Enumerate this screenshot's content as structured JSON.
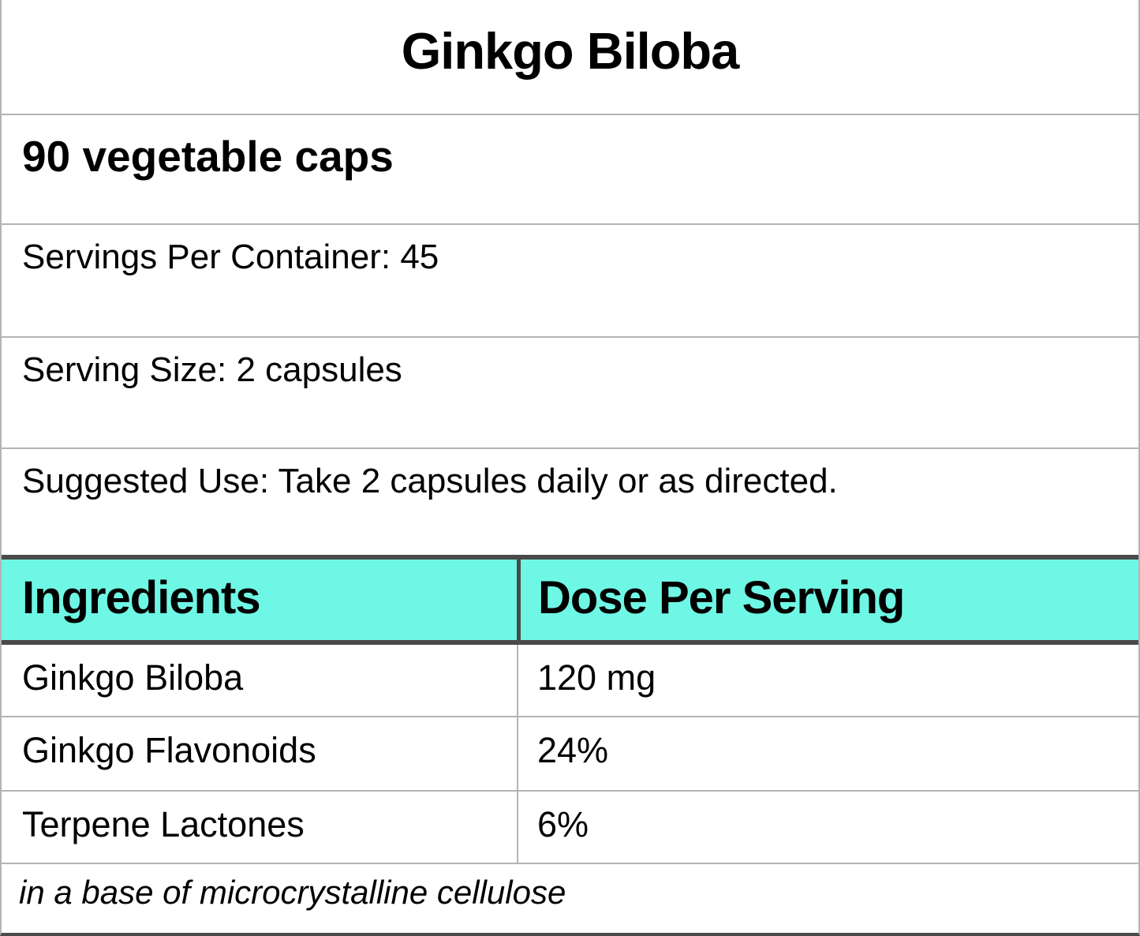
{
  "title": "Ginkgo Biloba",
  "package_quantity": "90 vegetable caps",
  "servings_per_container": "Servings Per Container: 45",
  "serving_size": "Serving Size: 2 capsules",
  "suggested_use": "Suggested Use: Take 2 capsules daily or as directed.",
  "ingredients_table": {
    "header": {
      "ingredients": "Ingredients",
      "dose": "Dose Per Serving"
    },
    "rows": [
      {
        "ingredient": "Ginkgo Biloba",
        "dose": "120 mg"
      },
      {
        "ingredient": "Ginkgo Flavonoids",
        "dose": "24%"
      },
      {
        "ingredient": "Terpene Lactones",
        "dose": "6%"
      }
    ],
    "base_note": "in a base of microcrystalline cellulose"
  },
  "colors": {
    "header_bg": "#6FF7E5",
    "dark_border": "#4a4a4a",
    "light_border": "#b4b4b4"
  }
}
